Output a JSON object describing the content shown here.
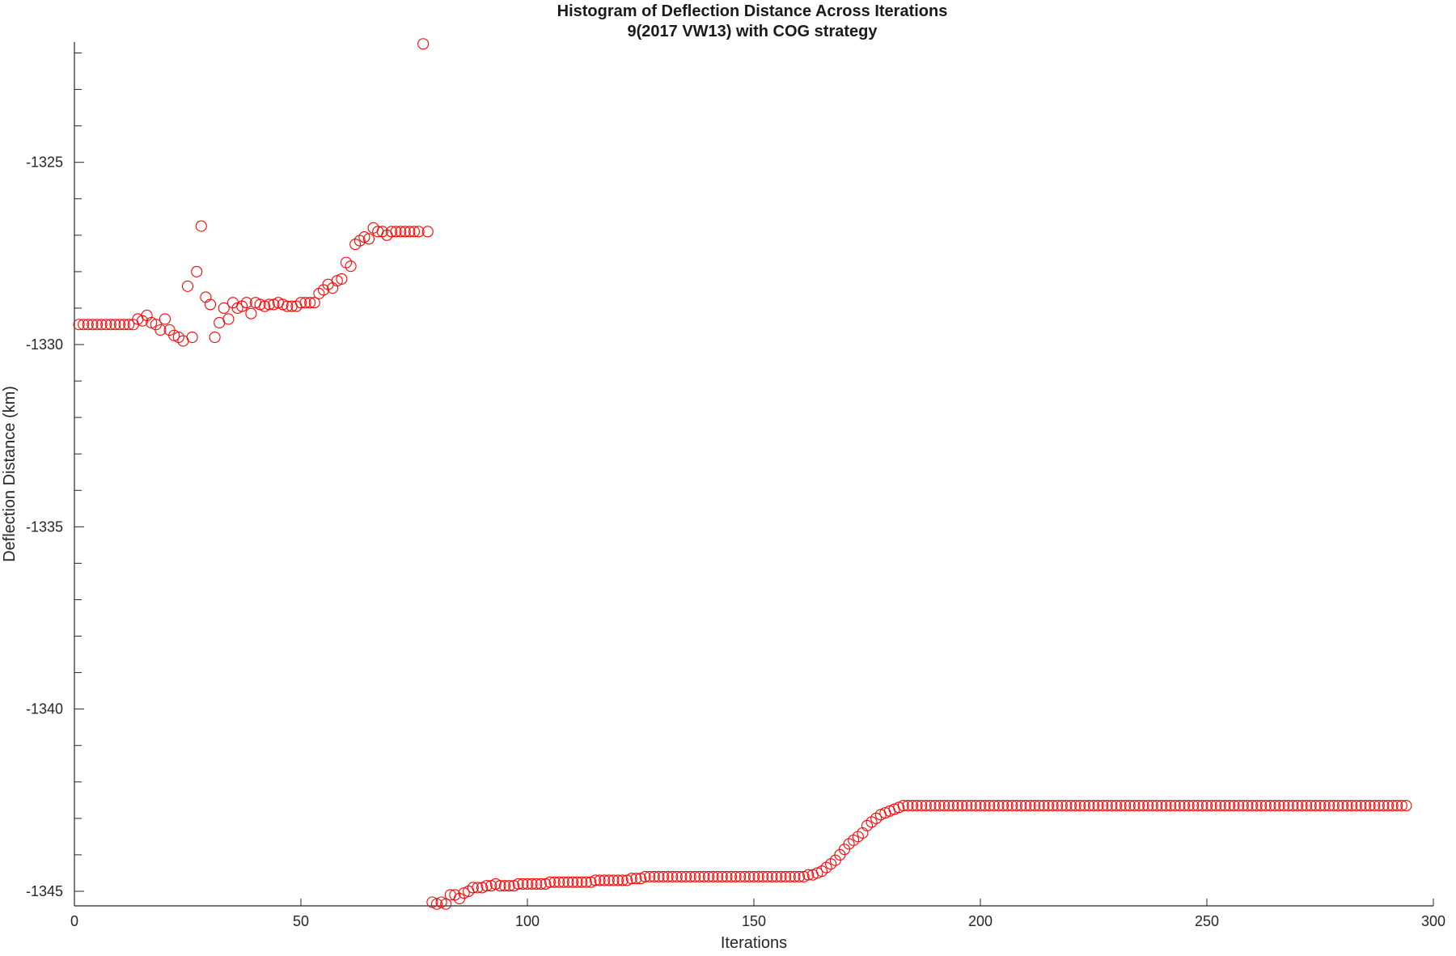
{
  "chart_data": {
    "type": "scatter",
    "title": "Histogram of Deflection Distance Across Iterations",
    "subtitle": "9(2017 VW13) with COG strategy",
    "xlabel": "Iterations",
    "ylabel": "Deflection Distance (km)",
    "xlim": [
      0,
      300
    ],
    "ylim": [
      -1345.4,
      -1321.7
    ],
    "x_ticks": [
      0,
      50,
      100,
      150,
      200,
      250,
      300
    ],
    "y_ticks": [
      -1345,
      -1340,
      -1335,
      -1330,
      -1325
    ],
    "y_minor_step": 1,
    "grid": false,
    "marker": "open-circle",
    "marker_color": "#ff0000",
    "series": [
      {
        "segments": [
          {
            "x_start": 1,
            "y": [
              -1329.45,
              -1329.45,
              -1329.45,
              -1329.45,
              -1329.45,
              -1329.45,
              -1329.45,
              -1329.45,
              -1329.45,
              -1329.45,
              -1329.45,
              -1329.45,
              -1329.45,
              -1329.3,
              -1329.35,
              -1329.2,
              -1329.4,
              -1329.45,
              -1329.6,
              -1329.3,
              -1329.6,
              -1329.75,
              -1329.8,
              -1329.9,
              -1328.4,
              -1329.8,
              -1328,
              -1326.75,
              -1328.7,
              -1328.9,
              -1329.8,
              -1329.4,
              -1329,
              -1329.3,
              -1328.85,
              -1329,
              -1328.95,
              -1328.85,
              -1329.15,
              -1328.85,
              -1328.9,
              -1328.95,
              -1328.9,
              -1328.9,
              -1328.85,
              -1328.9,
              -1328.95,
              -1328.95,
              -1328.95,
              -1328.85,
              -1328.85,
              -1328.85,
              -1328.85,
              -1328.6,
              -1328.5,
              -1328.35,
              -1328.45,
              -1328.25,
              -1328.2,
              -1327.75,
              -1327.85,
              -1327.25,
              -1327.15,
              -1327.05,
              -1327.1,
              -1326.8,
              -1326.9,
              -1326.9,
              -1327,
              -1326.9,
              -1326.9,
              -1326.9,
              -1326.9,
              -1326.9,
              -1326.9,
              -1326.9,
              -1321.75,
              -1326.9
            ]
          },
          {
            "x_start": 79,
            "y": [
              -1345.3,
              -1345.35,
              -1345.3,
              -1345.35,
              -1345.1,
              -1345.1,
              -1345.2,
              -1345.05,
              -1345,
              -1344.9,
              -1344.9,
              -1344.9,
              -1344.85,
              -1344.85,
              -1344.8,
              -1344.85,
              -1344.85,
              -1344.85,
              -1344.85,
              -1344.8,
              -1344.8,
              -1344.8,
              -1344.8,
              -1344.8,
              -1344.8,
              -1344.8,
              -1344.75,
              -1344.75,
              -1344.75,
              -1344.75,
              -1344.75,
              -1344.75,
              -1344.75,
              -1344.75,
              -1344.75,
              -1344.75,
              -1344.7,
              -1344.7,
              -1344.7,
              -1344.7,
              -1344.7,
              -1344.7,
              -1344.7,
              -1344.7,
              -1344.65,
              -1344.65,
              -1344.65,
              -1344.6,
              -1344.6,
              -1344.6,
              -1344.6,
              -1344.6,
              -1344.6,
              -1344.6,
              -1344.6,
              -1344.6,
              -1344.6,
              -1344.6,
              -1344.6,
              -1344.6,
              -1344.6,
              -1344.6,
              -1344.6,
              -1344.6,
              -1344.6,
              -1344.6,
              -1344.6,
              -1344.6,
              -1344.6,
              -1344.6,
              -1344.6,
              -1344.6,
              -1344.6,
              -1344.6,
              -1344.6,
              -1344.6,
              -1344.6,
              -1344.6,
              -1344.6,
              -1344.6,
              -1344.6,
              -1344.6,
              -1344.6,
              -1344.55,
              -1344.55,
              -1344.5,
              -1344.45,
              -1344.35,
              -1344.25,
              -1344.15,
              -1344,
              -1343.85,
              -1343.7,
              -1343.6,
              -1343.5,
              -1343.4,
              -1343.2,
              -1343.1,
              -1343,
              -1342.9,
              -1342.85,
              -1342.8,
              -1342.75,
              -1342.7,
              -1342.65,
              -1342.65,
              -1342.65,
              -1342.65,
              -1342.65,
              -1342.65,
              -1342.65,
              -1342.65,
              -1342.65,
              -1342.65,
              -1342.65,
              -1342.65,
              -1342.65,
              -1342.65,
              -1342.65,
              -1342.65,
              -1342.65,
              -1342.65,
              -1342.65,
              -1342.65,
              -1342.65,
              -1342.65,
              -1342.65,
              -1342.65,
              -1342.65,
              -1342.65,
              -1342.65,
              -1342.65,
              -1342.65,
              -1342.65,
              -1342.65,
              -1342.65,
              -1342.65,
              -1342.65,
              -1342.65,
              -1342.65,
              -1342.65,
              -1342.65,
              -1342.65,
              -1342.65,
              -1342.65,
              -1342.65,
              -1342.65,
              -1342.65,
              -1342.65,
              -1342.65,
              -1342.65,
              -1342.65,
              -1342.65,
              -1342.65,
              -1342.65,
              -1342.65,
              -1342.65,
              -1342.65,
              -1342.65,
              -1342.65,
              -1342.65,
              -1342.65,
              -1342.65,
              -1342.65,
              -1342.65,
              -1342.65,
              -1342.65,
              -1342.65,
              -1342.65,
              -1342.65,
              -1342.65,
              -1342.65,
              -1342.65,
              -1342.65,
              -1342.65,
              -1342.65,
              -1342.65,
              -1342.65,
              -1342.65,
              -1342.65,
              -1342.65,
              -1342.65,
              -1342.65,
              -1342.65,
              -1342.65,
              -1342.65,
              -1342.65,
              -1342.65,
              -1342.65,
              -1342.65,
              -1342.65,
              -1342.65,
              -1342.65,
              -1342.65,
              -1342.65,
              -1342.65,
              -1342.65,
              -1342.65,
              -1342.65,
              -1342.65,
              -1342.65,
              -1342.65,
              -1342.65,
              -1342.65,
              -1342.65,
              -1342.65,
              -1342.65,
              -1342.65,
              -1342.65,
              -1342.65,
              -1342.65,
              -1342.65,
              -1342.65,
              -1342.65,
              -1342.65,
              -1342.65
            ]
          }
        ]
      }
    ]
  }
}
